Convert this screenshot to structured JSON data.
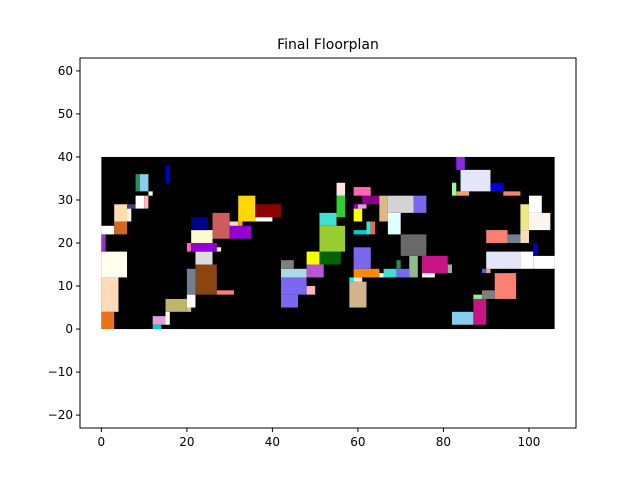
{
  "chart_data": {
    "type": "floorplan",
    "title": "Final Floorplan",
    "xlabel": "",
    "ylabel": "",
    "xlim": [
      -5,
      111
    ],
    "ylim": [
      -23,
      63
    ],
    "xticks": [
      0,
      20,
      40,
      60,
      80,
      100
    ],
    "yticks": [
      -20,
      -10,
      0,
      10,
      20,
      30,
      40,
      50,
      60
    ],
    "grid": false,
    "outline": {
      "x": 0,
      "y": 0,
      "w": 106,
      "h": 40,
      "color": "#000000"
    },
    "blocks": [
      {
        "x": 0,
        "y": 0,
        "w": 3,
        "h": 4,
        "color": "#e8731c"
      },
      {
        "x": 0,
        "y": 4,
        "w": 4,
        "h": 8,
        "color": "#ffdab9"
      },
      {
        "x": 0,
        "y": 12,
        "w": 6,
        "h": 6,
        "color": "#fffff0"
      },
      {
        "x": 0,
        "y": 18,
        "w": 1,
        "h": 4,
        "color": "#9932cc"
      },
      {
        "x": 0,
        "y": 22,
        "w": 3,
        "h": 2,
        "color": "#ffffff"
      },
      {
        "x": 3,
        "y": 22,
        "w": 3,
        "h": 3,
        "color": "#d2691e"
      },
      {
        "x": 3,
        "y": 25,
        "w": 3,
        "h": 4,
        "color": "#ffdead"
      },
      {
        "x": 6,
        "y": 25,
        "w": 1,
        "h": 3,
        "color": "#f5f5dc"
      },
      {
        "x": 6,
        "y": 28,
        "w": 2,
        "h": 1,
        "color": "#483d8b"
      },
      {
        "x": 8,
        "y": 28,
        "w": 2,
        "h": 3,
        "color": "#ffffff"
      },
      {
        "x": 10,
        "y": 28,
        "w": 1,
        "h": 3,
        "color": "#ffb6c1"
      },
      {
        "x": 11,
        "y": 31,
        "w": 1,
        "h": 1,
        "color": "#fffacd"
      },
      {
        "x": 8,
        "y": 32,
        "w": 1,
        "h": 4,
        "color": "#2e8b57"
      },
      {
        "x": 9,
        "y": 32,
        "w": 2,
        "h": 4,
        "color": "#87ceeb"
      },
      {
        "x": 15,
        "y": 34,
        "w": 1,
        "h": 4,
        "color": "#0000cd"
      },
      {
        "x": 12,
        "y": 0,
        "w": 2,
        "h": 1,
        "color": "#00ced1"
      },
      {
        "x": 12,
        "y": 1,
        "w": 3,
        "h": 2,
        "color": "#dda0dd"
      },
      {
        "x": 15,
        "y": 1,
        "w": 1,
        "h": 3,
        "color": "#ffffe0"
      },
      {
        "x": 15,
        "y": 4,
        "w": 5,
        "h": 3,
        "color": "#bdb76b"
      },
      {
        "x": 20,
        "y": 4,
        "w": 1,
        "h": 1,
        "color": "#deb887"
      },
      {
        "x": 20,
        "y": 5,
        "w": 2,
        "h": 3,
        "color": "#ffffff"
      },
      {
        "x": 20,
        "y": 8,
        "w": 2,
        "h": 6,
        "color": "#708090"
      },
      {
        "x": 22,
        "y": 8,
        "w": 5,
        "h": 7,
        "color": "#8b4513"
      },
      {
        "x": 27,
        "y": 8,
        "w": 4,
        "h": 1,
        "color": "#fa8072"
      },
      {
        "x": 22,
        "y": 15,
        "w": 4,
        "h": 3,
        "color": "#dcdcdc"
      },
      {
        "x": 20,
        "y": 18,
        "w": 1,
        "h": 2,
        "color": "#ff69b4"
      },
      {
        "x": 21,
        "y": 18,
        "w": 6,
        "h": 2,
        "color": "#9400d3"
      },
      {
        "x": 27,
        "y": 18,
        "w": 1,
        "h": 1,
        "color": "#fff8dc"
      },
      {
        "x": 21,
        "y": 20,
        "w": 5,
        "h": 3,
        "color": "#fffacd"
      },
      {
        "x": 21,
        "y": 23,
        "w": 4,
        "h": 3,
        "color": "#00008b"
      },
      {
        "x": 26,
        "y": 21,
        "w": 4,
        "h": 6,
        "color": "#cd5c5c"
      },
      {
        "x": 30,
        "y": 21,
        "w": 5,
        "h": 3,
        "color": "#9400d3"
      },
      {
        "x": 30,
        "y": 24,
        "w": 2,
        "h": 1,
        "color": "#f5deb3"
      },
      {
        "x": 32,
        "y": 24,
        "w": 1,
        "h": 1,
        "color": "#ffa500"
      },
      {
        "x": 32,
        "y": 25,
        "w": 4,
        "h": 6,
        "color": "#ffd700"
      },
      {
        "x": 36,
        "y": 25,
        "w": 4,
        "h": 1,
        "color": "#ffffff"
      },
      {
        "x": 36,
        "y": 26,
        "w": 6,
        "h": 3,
        "color": "#8b0000"
      },
      {
        "x": 42,
        "y": 5,
        "w": 4,
        "h": 3,
        "color": "#7b68ee"
      },
      {
        "x": 42,
        "y": 8,
        "w": 6,
        "h": 4,
        "color": "#7b68ee"
      },
      {
        "x": 48,
        "y": 8,
        "w": 2,
        "h": 2,
        "color": "#ffb6c1"
      },
      {
        "x": 42,
        "y": 12,
        "w": 6,
        "h": 2,
        "color": "#add8e6"
      },
      {
        "x": 42,
        "y": 14,
        "w": 3,
        "h": 2,
        "color": "#808080"
      },
      {
        "x": 48,
        "y": 12,
        "w": 4,
        "h": 3,
        "color": "#ba55d3"
      },
      {
        "x": 48,
        "y": 15,
        "w": 3,
        "h": 3,
        "color": "#ffff00"
      },
      {
        "x": 51,
        "y": 15,
        "w": 5,
        "h": 3,
        "color": "#006400"
      },
      {
        "x": 51,
        "y": 18,
        "w": 6,
        "h": 6,
        "color": "#9acd32"
      },
      {
        "x": 51,
        "y": 24,
        "w": 4,
        "h": 3,
        "color": "#40e0d0"
      },
      {
        "x": 55,
        "y": 26,
        "w": 2,
        "h": 5,
        "color": "#32cd32"
      },
      {
        "x": 55,
        "y": 31,
        "w": 2,
        "h": 3,
        "color": "#ffe4e1"
      },
      {
        "x": 58,
        "y": 5,
        "w": 4,
        "h": 6,
        "color": "#d2b48c"
      },
      {
        "x": 58,
        "y": 11,
        "w": 1,
        "h": 1,
        "color": "#00ffff"
      },
      {
        "x": 59,
        "y": 11,
        "w": 2,
        "h": 1,
        "color": "#ffe4e1"
      },
      {
        "x": 59,
        "y": 12,
        "w": 6,
        "h": 2,
        "color": "#ff8c00"
      },
      {
        "x": 59,
        "y": 14,
        "w": 4,
        "h": 5,
        "color": "#7b68ee"
      },
      {
        "x": 59,
        "y": 22,
        "w": 3,
        "h": 1,
        "color": "#00ced1"
      },
      {
        "x": 62,
        "y": 22,
        "w": 1,
        "h": 3,
        "color": "#40e0d0"
      },
      {
        "x": 63,
        "y": 22,
        "w": 1,
        "h": 3,
        "color": "#ff6347"
      },
      {
        "x": 59,
        "y": 25,
        "w": 2,
        "h": 3,
        "color": "#ffff00"
      },
      {
        "x": 59,
        "y": 28,
        "w": 1,
        "h": 1,
        "color": "#9400d3"
      },
      {
        "x": 60,
        "y": 28,
        "w": 2,
        "h": 1,
        "color": "#dda0dd"
      },
      {
        "x": 61,
        "y": 29,
        "w": 4,
        "h": 2,
        "color": "#8b008b"
      },
      {
        "x": 59,
        "y": 31,
        "w": 4,
        "h": 2,
        "color": "#ff69b4"
      },
      {
        "x": 65,
        "y": 12,
        "w": 1,
        "h": 1,
        "color": "#ffffff"
      },
      {
        "x": 66,
        "y": 12,
        "w": 3,
        "h": 2,
        "color": "#40e0d0"
      },
      {
        "x": 69,
        "y": 12,
        "w": 3,
        "h": 2,
        "color": "#7b68ee"
      },
      {
        "x": 69,
        "y": 14,
        "w": 1,
        "h": 2,
        "color": "#2e8b57"
      },
      {
        "x": 72,
        "y": 12,
        "w": 2,
        "h": 5,
        "color": "#8fbc8f"
      },
      {
        "x": 70,
        "y": 17,
        "w": 6,
        "h": 5,
        "color": "#696969"
      },
      {
        "x": 65,
        "y": 25,
        "w": 2,
        "h": 6,
        "color": "#deb887"
      },
      {
        "x": 67,
        "y": 22,
        "w": 3,
        "h": 5,
        "color": "#e0ffff"
      },
      {
        "x": 67,
        "y": 27,
        "w": 6,
        "h": 4,
        "color": "#d3d3d3"
      },
      {
        "x": 73,
        "y": 27,
        "w": 3,
        "h": 4,
        "color": "#7b68ee"
      },
      {
        "x": 75,
        "y": 12,
        "w": 3,
        "h": 1,
        "color": "#ffffff"
      },
      {
        "x": 75,
        "y": 13,
        "w": 6,
        "h": 4,
        "color": "#c71585"
      },
      {
        "x": 81,
        "y": 13,
        "w": 1,
        "h": 2,
        "color": "#a9a9a9"
      },
      {
        "x": 82,
        "y": 1,
        "w": 5,
        "h": 3,
        "color": "#87ceeb"
      },
      {
        "x": 87,
        "y": 1,
        "w": 3,
        "h": 6,
        "color": "#c71585"
      },
      {
        "x": 87,
        "y": 7,
        "w": 2,
        "h": 1,
        "color": "#90ee90"
      },
      {
        "x": 89,
        "y": 7,
        "w": 3,
        "h": 2,
        "color": "#808080"
      },
      {
        "x": 92,
        "y": 7,
        "w": 5,
        "h": 6,
        "color": "#fa8072"
      },
      {
        "x": 89,
        "y": 13,
        "w": 1,
        "h": 1,
        "color": "#4169e1"
      },
      {
        "x": 90,
        "y": 13,
        "w": 1,
        "h": 1,
        "color": "#ffa07a"
      },
      {
        "x": 90,
        "y": 14,
        "w": 8,
        "h": 4,
        "color": "#e6e6fa"
      },
      {
        "x": 98,
        "y": 14,
        "w": 3,
        "h": 4,
        "color": "#ffffff"
      },
      {
        "x": 101,
        "y": 14,
        "w": 5,
        "h": 3,
        "color": "#ffffff"
      },
      {
        "x": 101,
        "y": 17,
        "w": 1,
        "h": 3,
        "color": "#0000cd"
      },
      {
        "x": 90,
        "y": 20,
        "w": 5,
        "h": 3,
        "color": "#fa8072"
      },
      {
        "x": 95,
        "y": 20,
        "w": 3,
        "h": 2,
        "color": "#708090"
      },
      {
        "x": 98,
        "y": 20,
        "w": 2,
        "h": 3,
        "color": "#f5deb3"
      },
      {
        "x": 98,
        "y": 23,
        "w": 2,
        "h": 6,
        "color": "#f0e68c"
      },
      {
        "x": 100,
        "y": 23,
        "w": 5,
        "h": 4,
        "color": "#fff5ee"
      },
      {
        "x": 100,
        "y": 27,
        "w": 3,
        "h": 4,
        "color": "#ffffff"
      },
      {
        "x": 83,
        "y": 31,
        "w": 3,
        "h": 1,
        "color": "#f4a460"
      },
      {
        "x": 82,
        "y": 31,
        "w": 1,
        "h": 3,
        "color": "#98fb98"
      },
      {
        "x": 84,
        "y": 32,
        "w": 7,
        "h": 5,
        "color": "#e6e6fa"
      },
      {
        "x": 91,
        "y": 32,
        "w": 3,
        "h": 2,
        "color": "#0000cd"
      },
      {
        "x": 94,
        "y": 31,
        "w": 4,
        "h": 1,
        "color": "#fa8072"
      },
      {
        "x": 83,
        "y": 37,
        "w": 2,
        "h": 3,
        "color": "#8a2be2"
      }
    ]
  }
}
